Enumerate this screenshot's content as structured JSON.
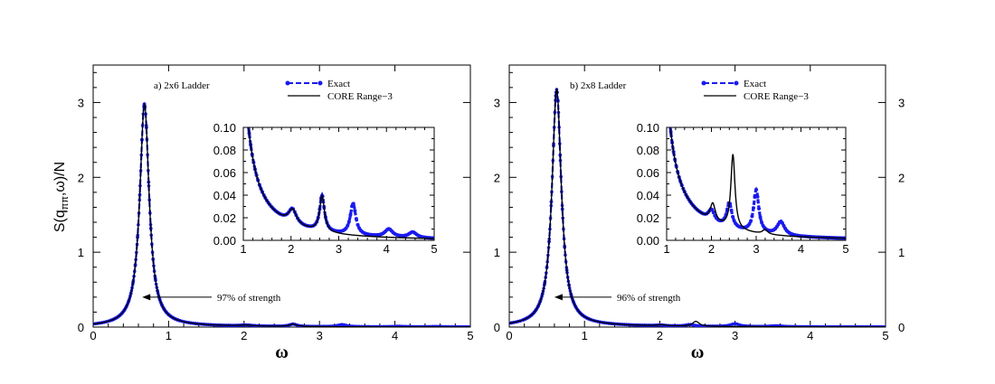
{
  "figure": {
    "ylabel": "S(q",
    "ylabel_sub": "ππ",
    "ylabel_tail": ",ω)/N"
  },
  "chart_data": [
    {
      "type": "line",
      "panel_label": "a) 2x6 Ladder",
      "xlabel": "ω",
      "xlim": [
        0,
        5
      ],
      "ylim": [
        0,
        3.5
      ],
      "xticks": [
        0,
        1,
        2,
        3,
        4,
        5
      ],
      "yticks": [
        0,
        1,
        2,
        3
      ],
      "annotation": {
        "text": "97% of strength",
        "x": 0.65,
        "y": 0.4
      },
      "legend": {
        "position": "top-right",
        "entries": [
          "Exact",
          "CORE Range−3"
        ]
      },
      "series": [
        {
          "name": "Exact",
          "color": "#1a1aee",
          "style": "dashed-markers",
          "peaks": [
            {
              "x0": 0.68,
              "h": 2.97,
              "g": 0.075
            },
            {
              "x0": 2.03,
              "h": 0.013,
              "g": 0.1
            },
            {
              "x0": 2.65,
              "h": 0.032,
              "g": 0.06
            },
            {
              "x0": 3.3,
              "h": 0.028,
              "g": 0.07
            },
            {
              "x0": 4.05,
              "h": 0.007,
              "g": 0.1
            },
            {
              "x0": 4.55,
              "h": 0.005,
              "g": 0.1
            }
          ],
          "tail": {
            "a": 0.012,
            "x0": 1.0
          }
        },
        {
          "name": "CORE Range−3",
          "color": "#000000",
          "style": "solid",
          "peaks": [
            {
              "x0": 0.68,
              "h": 2.97,
              "g": 0.075
            },
            {
              "x0": 2.03,
              "h": 0.013,
              "g": 0.1
            },
            {
              "x0": 2.65,
              "h": 0.032,
              "g": 0.06
            }
          ],
          "tail": {
            "a": 0.012,
            "x0": 1.0
          }
        }
      ],
      "inset": {
        "xlim": [
          1,
          5
        ],
        "ylim": [
          0,
          0.1
        ],
        "xticks": [
          1,
          2,
          3,
          4,
          5
        ],
        "yticks": [
          "0.00",
          "0.02",
          "0.04",
          "0.06",
          "0.08",
          "0.10"
        ]
      }
    },
    {
      "type": "line",
      "panel_label": "b) 2x8 Ladder",
      "xlabel": "ω",
      "xlim": [
        0,
        5
      ],
      "ylim": [
        0,
        3.5
      ],
      "xticks": [
        0,
        1,
        2,
        3,
        4,
        5
      ],
      "yticks": [
        0,
        1,
        2,
        3
      ],
      "annotation": {
        "text": "96% of strength",
        "x": 0.6,
        "y": 0.4
      },
      "legend": {
        "position": "top-right",
        "entries": [
          "Exact",
          "CORE Range−3"
        ]
      },
      "series": [
        {
          "name": "Exact",
          "color": "#1a1aee",
          "style": "dashed-markers",
          "peaks": [
            {
              "x0": 0.63,
              "h": 3.16,
              "g": 0.075
            },
            {
              "x0": 2.0,
              "h": 0.01,
              "g": 0.08
            },
            {
              "x0": 2.4,
              "h": 0.022,
              "g": 0.07
            },
            {
              "x0": 3.0,
              "h": 0.038,
              "g": 0.07
            },
            {
              "x0": 3.55,
              "h": 0.012,
              "g": 0.1
            }
          ],
          "tail": {
            "a": 0.015,
            "x0": 1.0
          }
        },
        {
          "name": "CORE Range−3",
          "color": "#000000",
          "style": "solid",
          "peaks": [
            {
              "x0": 0.63,
              "h": 3.16,
              "g": 0.075
            },
            {
              "x0": 2.03,
              "h": 0.016,
              "g": 0.07
            },
            {
              "x0": 2.48,
              "h": 0.066,
              "g": 0.055
            },
            {
              "x0": 3.2,
              "h": 0.004,
              "g": 0.07
            }
          ],
          "tail": {
            "a": 0.015,
            "x0": 1.0
          }
        }
      ],
      "inset": {
        "xlim": [
          1,
          5
        ],
        "ylim": [
          0,
          0.1
        ],
        "xticks": [
          1,
          2,
          3,
          4,
          5
        ],
        "yticks": [
          "0.00",
          "0.02",
          "0.04",
          "0.06",
          "0.08",
          "0.10"
        ]
      }
    }
  ]
}
